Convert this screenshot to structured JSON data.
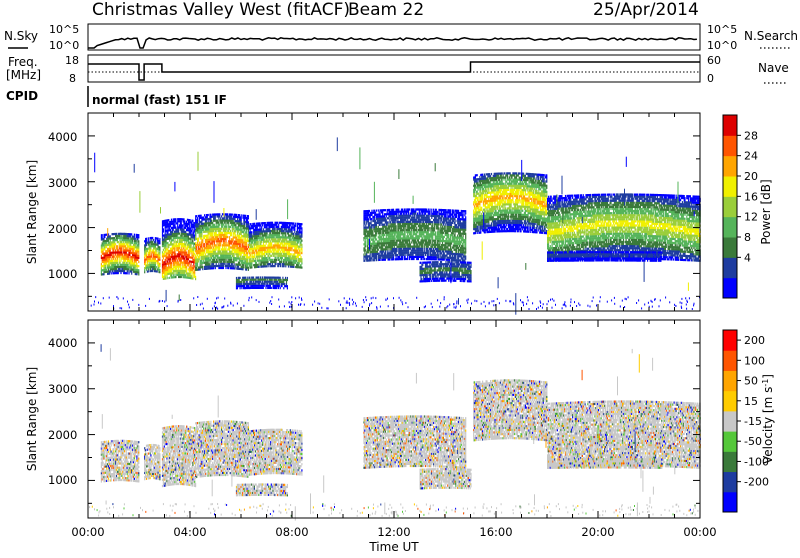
{
  "header": {
    "title": "Christmas Valley West (fitACF)",
    "beam": "Beam 22",
    "date": "25/Apr/2014"
  },
  "top_panels": {
    "nsky_label": "N.Sky",
    "nsearch_label": "N.Search",
    "noise_ticks": [
      "10^5",
      "10^0"
    ],
    "freq_label_1": "Freq.",
    "freq_label_2": "[MHz]",
    "freq_ticks": [
      "18",
      "8"
    ],
    "nave_label": "Nave",
    "nave_ticks": [
      "60",
      "0"
    ],
    "cpid_label": "CPID",
    "cpid_text": "normal (fast) 151 IF"
  },
  "x_axis": {
    "label": "Time UT",
    "ticks": [
      "00:00",
      "04:00",
      "08:00",
      "12:00",
      "16:00",
      "20:00",
      "00:00"
    ]
  },
  "power_panel": {
    "ylabel": "Slant Range [km]",
    "yticks": [
      "4000",
      "3000",
      "2000",
      "1000"
    ],
    "colorbar_label": "Power [dB]",
    "colorbar_ticks": [
      "28",
      "24",
      "20",
      "16",
      "12",
      "8",
      "4"
    ],
    "colors": [
      "#0000ff",
      "#1e3ca0",
      "#3a7a3a",
      "#55b45a",
      "#9ace3a",
      "#f0f000",
      "#ffa500",
      "#ff5500",
      "#dd0000"
    ]
  },
  "velocity_panel": {
    "ylabel": "Slant Range [km]",
    "yticks": [
      "4000",
      "3000",
      "2000",
      "1000"
    ],
    "colorbar_label": "Velocity [m s",
    "colorbar_label_sup": "-1",
    "colorbar_label_end": "]",
    "colorbar_ticks": [
      "200",
      "100",
      "50",
      "15",
      "-15",
      "-50",
      "-100",
      "-200"
    ],
    "colors": [
      "#0000ff",
      "#1e3ca0",
      "#3a7a3a",
      "#55c83a",
      "#c8c8c8",
      "#ffcc00",
      "#ffa500",
      "#ff5500",
      "#ff0000"
    ]
  },
  "chart_data": {
    "type": "heatmap",
    "x_unit": "hours UT",
    "x_range": [
      0,
      24
    ],
    "y_range_km": [
      180,
      4500
    ],
    "power_bands": [
      {
        "t0": 0.5,
        "t1": 2.0,
        "r0": 1000,
        "r1": 1900,
        "core": 1350,
        "level": 8
      },
      {
        "t0": 2.2,
        "t1": 2.8,
        "r0": 1050,
        "r1": 1800,
        "core": 1300,
        "level": 7
      },
      {
        "t0": 2.9,
        "t1": 4.2,
        "r0": 900,
        "r1": 2200,
        "core": 1200,
        "level": 8
      },
      {
        "t0": 4.2,
        "t1": 6.3,
        "r0": 1100,
        "r1": 2300,
        "core": 1550,
        "level": 7
      },
      {
        "t0": 6.3,
        "t1": 8.4,
        "r0": 1150,
        "r1": 2100,
        "core": 1450,
        "level": 6
      },
      {
        "t0": 5.8,
        "t1": 7.8,
        "r0": 700,
        "r1": 950,
        "core": 850,
        "level": 2
      },
      {
        "t0": 10.8,
        "t1": 14.8,
        "r0": 1300,
        "r1": 2400,
        "core": 1700,
        "level": 3
      },
      {
        "t0": 13.0,
        "t1": 15.0,
        "r0": 850,
        "r1": 1300,
        "core": 1050,
        "level": 2
      },
      {
        "t0": 15.1,
        "t1": 18.0,
        "r0": 1900,
        "r1": 3200,
        "core": 2500,
        "level": 6
      },
      {
        "t0": 18.0,
        "t1": 24.0,
        "r0": 1300,
        "r1": 2700,
        "core": 1900,
        "level": 5
      },
      {
        "t0": 18.0,
        "t1": 22.5,
        "r0": 1300,
        "r1": 1500,
        "core": 1400,
        "level": 1
      }
    ]
  }
}
